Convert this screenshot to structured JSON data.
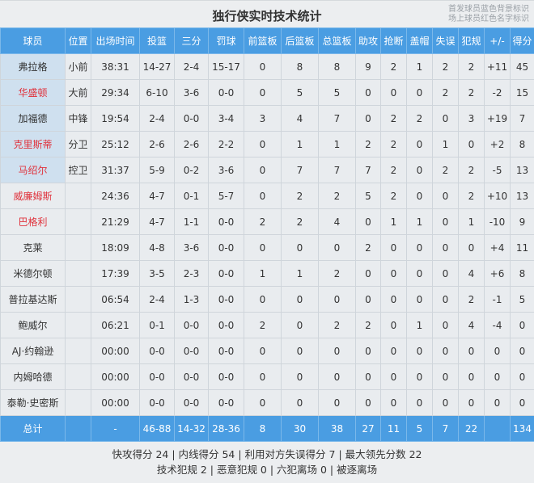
{
  "title": "独行侠实时技术统计",
  "notes": [
    "首发球员蓝色背景标识",
    "场上球员红色名字标识"
  ],
  "colors": {
    "header": "#4a9de2",
    "starter_bg": "#cfe0ef",
    "on_court_name": "#e0323c"
  },
  "headers": [
    "球员",
    "位置",
    "出场时间",
    "投篮",
    "三分",
    "罚球",
    "前篮板",
    "后篮板",
    "总篮板",
    "助攻",
    "抢断",
    "盖帽",
    "失误",
    "犯规",
    "+/-",
    "得分"
  ],
  "rows": [
    {
      "starter": true,
      "on_court": false,
      "cells": [
        "弗拉格",
        "小前",
        "38:31",
        "14-27",
        "2-4",
        "15-17",
        "0",
        "8",
        "8",
        "9",
        "2",
        "1",
        "2",
        "2",
        "+11",
        "45"
      ]
    },
    {
      "starter": true,
      "on_court": true,
      "cells": [
        "华盛顿",
        "大前",
        "29:34",
        "6-10",
        "3-6",
        "0-0",
        "0",
        "5",
        "5",
        "0",
        "0",
        "0",
        "2",
        "2",
        "-2",
        "15"
      ]
    },
    {
      "starter": true,
      "on_court": false,
      "cells": [
        "加福德",
        "中锋",
        "19:54",
        "2-4",
        "0-0",
        "3-4",
        "3",
        "4",
        "7",
        "0",
        "2",
        "2",
        "0",
        "3",
        "+19",
        "7"
      ]
    },
    {
      "starter": true,
      "on_court": true,
      "cells": [
        "克里斯蒂",
        "分卫",
        "25:12",
        "2-6",
        "2-6",
        "2-2",
        "0",
        "1",
        "1",
        "2",
        "2",
        "0",
        "1",
        "0",
        "+2",
        "8"
      ]
    },
    {
      "starter": true,
      "on_court": true,
      "cells": [
        "马绍尔",
        "控卫",
        "31:37",
        "5-9",
        "0-2",
        "3-6",
        "0",
        "7",
        "7",
        "7",
        "2",
        "0",
        "2",
        "2",
        "-5",
        "13"
      ]
    },
    {
      "starter": false,
      "on_court": true,
      "cells": [
        "威廉姆斯",
        "",
        "24:36",
        "4-7",
        "0-1",
        "5-7",
        "0",
        "2",
        "2",
        "5",
        "2",
        "0",
        "0",
        "2",
        "+10",
        "13"
      ]
    },
    {
      "starter": false,
      "on_court": true,
      "cells": [
        "巴格利",
        "",
        "21:29",
        "4-7",
        "1-1",
        "0-0",
        "2",
        "2",
        "4",
        "0",
        "1",
        "1",
        "0",
        "1",
        "-10",
        "9"
      ]
    },
    {
      "starter": false,
      "on_court": false,
      "cells": [
        "克莱",
        "",
        "18:09",
        "4-8",
        "3-6",
        "0-0",
        "0",
        "0",
        "0",
        "2",
        "0",
        "0",
        "0",
        "0",
        "+4",
        "11"
      ]
    },
    {
      "starter": false,
      "on_court": false,
      "cells": [
        "米德尔顿",
        "",
        "17:39",
        "3-5",
        "2-3",
        "0-0",
        "1",
        "1",
        "2",
        "0",
        "0",
        "0",
        "0",
        "4",
        "+6",
        "8"
      ]
    },
    {
      "starter": false,
      "on_court": false,
      "cells": [
        "普拉基达斯",
        "",
        "06:54",
        "2-4",
        "1-3",
        "0-0",
        "0",
        "0",
        "0",
        "0",
        "0",
        "0",
        "0",
        "2",
        "-1",
        "5"
      ]
    },
    {
      "starter": false,
      "on_court": false,
      "cells": [
        "鲍威尔",
        "",
        "06:21",
        "0-1",
        "0-0",
        "0-0",
        "2",
        "0",
        "2",
        "2",
        "0",
        "1",
        "0",
        "4",
        "-4",
        "0"
      ]
    },
    {
      "starter": false,
      "on_court": false,
      "cells": [
        "AJ·约翰逊",
        "",
        "00:00",
        "0-0",
        "0-0",
        "0-0",
        "0",
        "0",
        "0",
        "0",
        "0",
        "0",
        "0",
        "0",
        "0",
        "0"
      ]
    },
    {
      "starter": false,
      "on_court": false,
      "cells": [
        "内姆哈德",
        "",
        "00:00",
        "0-0",
        "0-0",
        "0-0",
        "0",
        "0",
        "0",
        "0",
        "0",
        "0",
        "0",
        "0",
        "0",
        "0"
      ]
    },
    {
      "starter": false,
      "on_court": false,
      "cells": [
        "泰勒·史密斯",
        "",
        "00:00",
        "0-0",
        "0-0",
        "0-0",
        "0",
        "0",
        "0",
        "0",
        "0",
        "0",
        "0",
        "0",
        "0",
        "0"
      ]
    }
  ],
  "total": [
    "总计",
    "",
    "-",
    "46-88",
    "14-32",
    "28-36",
    "8",
    "30",
    "38",
    "27",
    "11",
    "5",
    "7",
    "22",
    "",
    "134"
  ],
  "footer": [
    "快攻得分 24 | 内线得分 54 | 利用对方失误得分 7 | 最大领先分数 22",
    "技术犯规 2 | 恶意犯规 0 | 六犯离场 0 | 被逐离场"
  ]
}
